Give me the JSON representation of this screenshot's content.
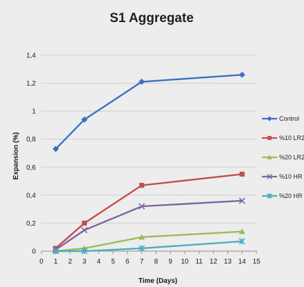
{
  "colors": {
    "background": "#ededed",
    "gridline": "#cfcfcf",
    "axis": "#8a8a8a"
  },
  "chart_data": {
    "type": "line",
    "title": "S1 Aggregate",
    "xlabel": "Time (Days)",
    "ylabel": "Expansion (%)",
    "xlim": [
      0,
      15
    ],
    "ylim": [
      0,
      1.4
    ],
    "x_ticks": [
      "0",
      "1",
      "2",
      "3",
      "4",
      "5",
      "6",
      "7",
      "8",
      "9",
      "10",
      "11",
      "12",
      "13",
      "14",
      "15"
    ],
    "y_ticks": [
      "0",
      "0,2",
      "0,4",
      "0,6",
      "0,8",
      "1",
      "1,2",
      "1,4"
    ],
    "grid": "horizontal",
    "legend_position": "right",
    "series": [
      {
        "name": "Control",
        "color": "#3a6fc4",
        "marker": "diamond",
        "x": [
          1,
          3,
          7,
          14
        ],
        "y": [
          0.73,
          0.94,
          1.21,
          1.26
        ]
      },
      {
        "name": "%10 LR2",
        "color": "#c0504d",
        "marker": "square",
        "x": [
          1,
          3,
          7,
          14
        ],
        "y": [
          0.02,
          0.2,
          0.47,
          0.55
        ]
      },
      {
        "name": "%20 LR2",
        "color": "#9bbb59",
        "marker": "triangle",
        "x": [
          1,
          3,
          7,
          14
        ],
        "y": [
          0.0,
          0.02,
          0.1,
          0.14
        ]
      },
      {
        "name": "%10 HR",
        "color": "#8064a2",
        "marker": "x",
        "x": [
          1,
          3,
          7,
          14
        ],
        "y": [
          0.01,
          0.15,
          0.32,
          0.36
        ]
      },
      {
        "name": "%20 HR",
        "color": "#4bacc6",
        "marker": "star",
        "x": [
          1,
          3,
          7,
          14
        ],
        "y": [
          0.0,
          0.0,
          0.02,
          0.07
        ]
      }
    ]
  }
}
